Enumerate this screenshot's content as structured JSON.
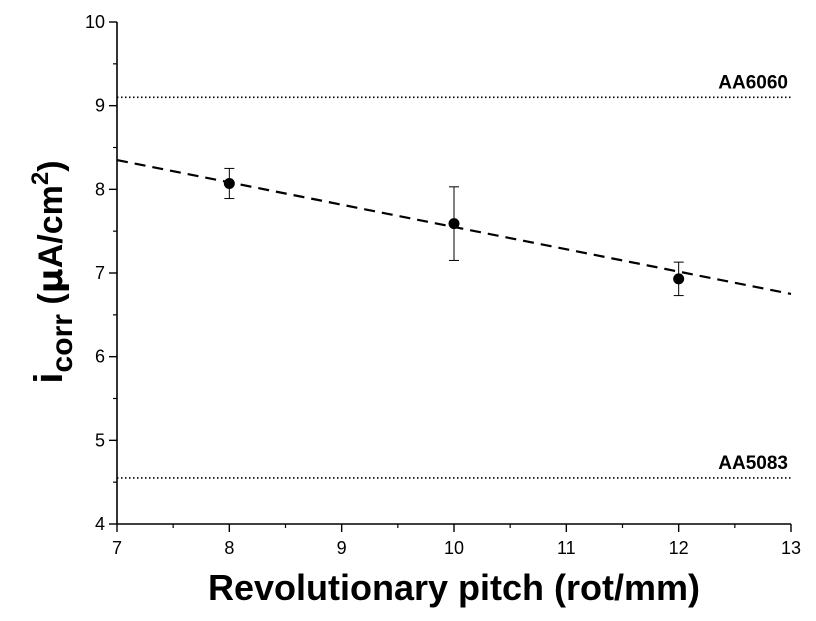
{
  "chart_data": {
    "type": "scatter",
    "xlabel": "Revolutionary pitch (rot/mm)",
    "ylabel": {
      "base": "i",
      "sub": "corr",
      "rest_open": " (",
      "mu": "μ",
      "unit": "A/cm",
      "sup": "2",
      "rest_close": ")"
    },
    "xlim": [
      7,
      13
    ],
    "ylim": [
      4,
      10
    ],
    "x_ticks": [
      7,
      8,
      9,
      10,
      11,
      12,
      13
    ],
    "y_ticks": [
      4,
      5,
      6,
      7,
      8,
      9,
      10
    ],
    "grid": false,
    "series": [
      {
        "x": [
          8,
          10,
          12
        ],
        "y": [
          8.07,
          7.59,
          6.93
        ],
        "error": [
          0.18,
          0.44,
          0.2
        ]
      }
    ],
    "trendline": {
      "x": [
        7,
        13
      ],
      "y": [
        8.35,
        6.75
      ],
      "style": "dashed"
    },
    "reference_lines": [
      {
        "label": "AA6060",
        "y": 9.1,
        "style": "dotted"
      },
      {
        "label": "AA5083",
        "y": 4.55,
        "style": "dotted"
      }
    ]
  }
}
